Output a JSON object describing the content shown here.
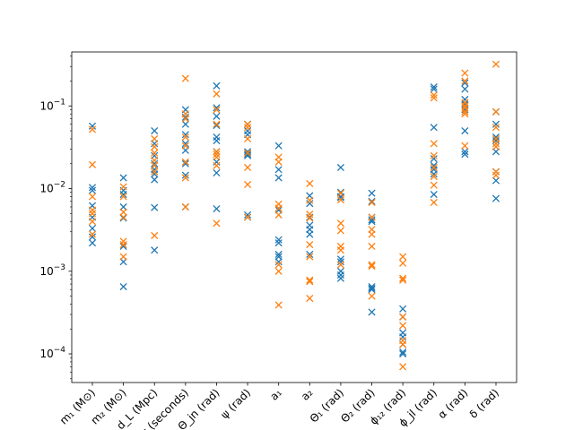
{
  "chart_data": {
    "type": "scatter",
    "title": "",
    "xlabel": "",
    "ylabel": "",
    "yscale": "log",
    "ylim": [
      4.5e-05,
      0.45
    ],
    "grid": false,
    "legend": "none",
    "categories": [
      "m₁ (M⊙)",
      "m₂ (M⊙)",
      "d_L (Mpc)",
      "t_c (seconds)",
      "Θ_jn (rad)",
      "ψ (rad)",
      "a₁",
      "a₂",
      "Θ₁ (rad)",
      "Θ₂ (rad)",
      "ϕ₁₂ (rad)",
      "ϕ_jl (rad)",
      "α (rad)",
      "δ (rad)"
    ],
    "yticks": [
      {
        "value": 0.0001,
        "base": "10",
        "exp": "−4"
      },
      {
        "value": 0.001,
        "base": "10",
        "exp": "−3"
      },
      {
        "value": 0.01,
        "base": "10",
        "exp": "−2"
      },
      {
        "value": 0.1,
        "base": "10",
        "exp": "−1"
      }
    ],
    "series": [
      {
        "color": "#1f77b4",
        "marker": "x",
        "values": [
          [
            0.057,
            0.0103,
            0.0095,
            0.0062,
            0.0045,
            0.0033,
            0.0026,
            0.0022
          ],
          [
            0.0135,
            0.0095,
            0.0085,
            0.006,
            0.0044,
            0.002,
            0.0013,
            0.00065
          ],
          [
            0.05,
            0.035,
            0.025,
            0.02,
            0.017,
            0.015,
            0.0128,
            0.0059,
            0.0018
          ],
          [
            0.09,
            0.073,
            0.06,
            0.045,
            0.035,
            0.029,
            0.02,
            0.0145,
            0.006
          ],
          [
            0.175,
            0.095,
            0.075,
            0.058,
            0.042,
            0.038,
            0.028,
            0.021,
            0.0155,
            0.0057
          ],
          [
            0.06,
            0.05,
            0.045,
            0.028,
            0.026,
            0.025,
            0.0048,
            0.0045
          ],
          [
            0.033,
            0.017,
            0.0135,
            0.0055,
            0.0024,
            0.0022,
            0.0016,
            0.0015,
            0.0013
          ],
          [
            0.0082,
            0.0066,
            0.0045,
            0.0036,
            0.0032,
            0.0028,
            0.0016
          ],
          [
            0.018,
            0.009,
            0.008,
            0.0078,
            0.0014,
            0.0013,
            0.001,
            0.0009,
            0.00082
          ],
          [
            0.0088,
            0.007,
            0.0045,
            0.0042,
            0.004,
            0.00065,
            0.00062,
            0.0006,
            0.00032
          ],
          [
            0.00035,
            0.00028,
            0.00018,
            0.00016,
            0.00013,
            0.000105,
            0.0001
          ],
          [
            0.17,
            0.16,
            0.055,
            0.023,
            0.019,
            0.017,
            0.015,
            0.0085
          ],
          [
            0.19,
            0.16,
            0.12,
            0.105,
            0.09,
            0.05,
            0.028,
            0.026
          ],
          [
            0.085,
            0.06,
            0.042,
            0.038,
            0.028,
            0.016,
            0.0125,
            0.0076
          ]
        ]
      },
      {
        "color": "#ff7f0e",
        "marker": "x",
        "values": [
          [
            0.052,
            0.0195,
            0.008,
            0.0055,
            0.005,
            0.004,
            0.0028
          ],
          [
            0.0105,
            0.008,
            0.0052,
            0.0045,
            0.0023,
            0.0021,
            0.0015
          ],
          [
            0.04,
            0.032,
            0.027,
            0.022,
            0.019,
            0.016,
            0.0027
          ],
          [
            0.215,
            0.08,
            0.07,
            0.042,
            0.033,
            0.021,
            0.0135,
            0.006
          ],
          [
            0.14,
            0.09,
            0.06,
            0.028,
            0.026,
            0.024,
            0.019,
            0.0038
          ],
          [
            0.06,
            0.055,
            0.04,
            0.027,
            0.018,
            0.0112,
            0.0045
          ],
          [
            0.024,
            0.021,
            0.0065,
            0.0058,
            0.0048,
            0.0012,
            0.001,
            0.00039
          ],
          [
            0.0115,
            0.0072,
            0.0049,
            0.0044,
            0.0021,
            0.0015,
            0.00078,
            0.00075,
            0.00047
          ],
          [
            0.0088,
            0.0073,
            0.0038,
            0.0031,
            0.002,
            0.0018,
            0.0012
          ],
          [
            0.0068,
            0.0045,
            0.0032,
            0.0028,
            0.002,
            0.0012,
            0.00115,
            0.0005
          ],
          [
            0.0015,
            0.00125,
            0.00082,
            0.00078,
            0.00028,
            0.00022,
            0.000145,
            0.00013,
            7e-05
          ],
          [
            0.135,
            0.125,
            0.035,
            0.025,
            0.018,
            0.014,
            0.011,
            0.0068
          ],
          [
            0.25,
            0.2,
            0.11,
            0.1,
            0.095,
            0.085,
            0.08,
            0.033
          ],
          [
            0.32,
            0.085,
            0.055,
            0.04,
            0.035,
            0.032,
            0.016,
            0.0145
          ]
        ]
      }
    ]
  }
}
